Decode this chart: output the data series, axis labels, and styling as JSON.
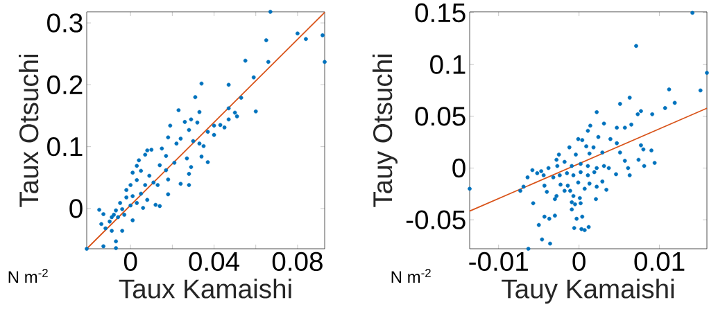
{
  "chart_data": [
    {
      "type": "scatter",
      "xlabel": "Taux Kamaishi",
      "ylabel": "Taux Otsuchi",
      "annotations": [
        "N m$^{-2}$"
      ],
      "marker": "circle",
      "xlim": [
        -0.021,
        0.093
      ],
      "ylim": [
        -0.065,
        0.318
      ],
      "xticks": [
        0,
        {
          "value": 0.02,
          "label": null
        },
        0.04,
        {
          "value": 0.06,
          "label": null
        },
        0.08
      ],
      "yticks": [
        0,
        0.1,
        0.2,
        0.3
      ],
      "series": [
        {
          "color": "#0072bd",
          "x": [
            0.067,
            0.08,
            0.084,
            0.092,
            0.093,
            0.065,
            0.066,
            0.055,
            0.059,
            0.034,
            0.047,
            0.031,
            0.053,
            0.023,
            0.033,
            0.047,
            0.06,
            0.05,
            0.051,
            0.047,
            0.026,
            0.029,
            0.032,
            0.019,
            0.04,
            0.043,
            0.045,
            0.028,
            0.037,
            0.04,
            0.018,
            0.024,
            0.03,
            0.033,
            0.035,
            0.022,
            0.015,
            0.008,
            0.01,
            0.007,
            0.017,
            0.027,
            0.034,
            0.037,
            0.004,
            0.003,
            0.021,
            0.029,
            0.017,
            0.014,
            0.028,
            0.018,
            0.024,
            0.028,
            0.001,
            0.005,
            0.009,
            0.011,
            0.0,
            0.003,
            0.007,
            0.013,
            0.018,
            -0.002,
            -0.002,
            0.001,
            0.005,
            0.008,
            0.012,
            0.014,
            0.006,
            0.003,
            0.0,
            -0.005,
            -0.004,
            -0.007,
            -0.008,
            -0.015,
            -0.013,
            -0.009,
            -0.006,
            -0.003,
            0.001,
            -0.01,
            -0.014,
            -0.012,
            -0.009,
            -0.004,
            -0.007,
            -0.013,
            -0.007,
            -0.021
          ],
          "values": [
            0.318,
            0.283,
            0.274,
            0.28,
            0.237,
            0.272,
            0.237,
            0.239,
            0.212,
            0.202,
            0.2,
            0.18,
            0.179,
            0.159,
            0.156,
            0.162,
            0.157,
            0.155,
            0.149,
            0.144,
            0.14,
            0.144,
            0.139,
            0.134,
            0.134,
            0.135,
            0.131,
            0.127,
            0.124,
            0.119,
            0.115,
            0.113,
            0.109,
            0.105,
            0.101,
            0.105,
            0.097,
            0.094,
            0.095,
            0.087,
            0.085,
            0.081,
            0.084,
            0.075,
            0.078,
            0.069,
            0.074,
            0.067,
            0.062,
            0.07,
            0.056,
            0.047,
            0.04,
            0.038,
            0.058,
            0.061,
            0.053,
            0.042,
            0.038,
            0.046,
            0.038,
            0.038,
            0.023,
            0.03,
            0.018,
            0.02,
            0.024,
            0.014,
            0.006,
            0.004,
            0.001,
            0.009,
            0.005,
            0.009,
            -0.001,
            -0.003,
            -0.01,
            -0.002,
            -0.009,
            -0.014,
            -0.014,
            -0.01,
            -0.019,
            -0.021,
            -0.025,
            -0.032,
            -0.036,
            -0.036,
            -0.053,
            -0.061,
            -0.064,
            -0.065
          ]
        },
        {
          "type": "line",
          "color": "#d95319",
          "marker": "none",
          "x": [
            -0.021,
            0.093
          ],
          "values": [
            -0.065,
            0.317
          ]
        }
      ]
    },
    {
      "type": "scatter",
      "xlabel": "Tauy Kamaishi",
      "ylabel": "Tauy Otsuchi",
      "annotations": [
        "N m$^{-2}$"
      ],
      "marker": "circle",
      "xlim": [
        -0.0136,
        0.0159
      ],
      "ylim": [
        -0.078,
        0.151
      ],
      "xticks": [
        -0.01,
        0,
        0.01
      ],
      "yticks": [
        -0.05,
        0,
        0.05,
        0.1,
        0.15
      ],
      "series": [
        {
          "color": "#0072bd",
          "x": [
            0.0141,
            0.0071,
            0.0159,
            0.0112,
            0.0151,
            0.0119,
            0.0107,
            0.0063,
            0.0051,
            0.0022,
            0.0077,
            0.0073,
            0.0091,
            0.0031,
            0.0014,
            0.0065,
            0.0047,
            0.0057,
            0.0011,
            0.0024,
            -0.0001,
            0.0004,
            0.0009,
            -0.0012,
            0.0018,
            0.0039,
            0.0047,
            0.0077,
            0.008,
            0.009,
            0.0051,
            -0.0025,
            -0.0028,
            -0.0004,
            0.0013,
            0.0029,
            0.0057,
            0.0074,
            0.0081,
            0.0094,
            0.0061,
            0.0063,
            0.0046,
            0.0037,
            -0.0058,
            -0.0064,
            -0.0047,
            -0.0038,
            -0.0027,
            -0.0018,
            -0.0009,
            0.0002,
            0.0011,
            0.0022,
            0.0031,
            -0.0015,
            -0.0007,
            0.0002,
            0.0011,
            0.0019,
            -0.0024,
            -0.0032,
            -0.0044,
            -0.0052,
            -0.0136,
            -0.0073,
            -0.0069,
            -0.0043,
            -0.0023,
            -0.0014,
            -0.0001,
            0.0013,
            0.0022,
            0.0029,
            0.0034,
            -0.004,
            -0.003,
            -0.0028,
            -0.0018,
            -0.0011,
            -0.0007,
            0.0001,
            0.0021,
            0.0007,
            -0.0057,
            -0.0009,
            -0.0005,
            0.0002,
            -0.0009,
            -0.0043,
            -0.0037,
            -0.003,
            -0.0003,
            0.0004,
            -0.005,
            -0.0006,
            0.0003,
            0.0007,
            0.0012,
            -0.0046,
            -0.0036,
            -0.0063
          ],
          "values": [
            0.15,
            0.118,
            0.092,
            0.076,
            0.075,
            0.063,
            0.058,
            0.068,
            0.062,
            0.054,
            0.055,
            0.052,
            0.052,
            0.043,
            0.041,
            0.042,
            0.039,
            0.039,
            0.036,
            0.03,
            0.028,
            0.027,
            0.021,
            0.02,
            0.02,
            0.028,
            0.024,
            0.022,
            0.018,
            0.017,
            0.015,
            0.013,
            0.008,
            0.013,
            0.014,
            0.015,
            0.007,
            0.008,
            0.002,
            0.005,
            0.0,
            -0.007,
            -0.006,
            0.0,
            -0.002,
            -0.009,
            -0.003,
            0.0,
            0.002,
            0.006,
            0.002,
            0.004,
            0.002,
            0.0,
            0.002,
            -0.005,
            -0.007,
            -0.004,
            -0.007,
            -0.004,
            -0.007,
            -0.009,
            -0.007,
            -0.005,
            -0.02,
            -0.022,
            -0.018,
            -0.017,
            -0.016,
            -0.017,
            -0.014,
            -0.015,
            -0.018,
            -0.013,
            -0.021,
            -0.023,
            -0.03,
            -0.027,
            -0.022,
            -0.022,
            -0.027,
            -0.029,
            -0.03,
            -0.02,
            -0.034,
            -0.033,
            -0.035,
            -0.034,
            -0.04,
            -0.047,
            -0.049,
            -0.046,
            -0.049,
            -0.047,
            -0.055,
            -0.058,
            -0.059,
            -0.06,
            -0.057,
            -0.069,
            -0.073,
            -0.078
          ]
        },
        {
          "type": "line",
          "color": "#d95319",
          "marker": "none",
          "x": [
            -0.0136,
            0.0159
          ],
          "values": [
            -0.0416,
            0.0578
          ]
        }
      ]
    }
  ]
}
